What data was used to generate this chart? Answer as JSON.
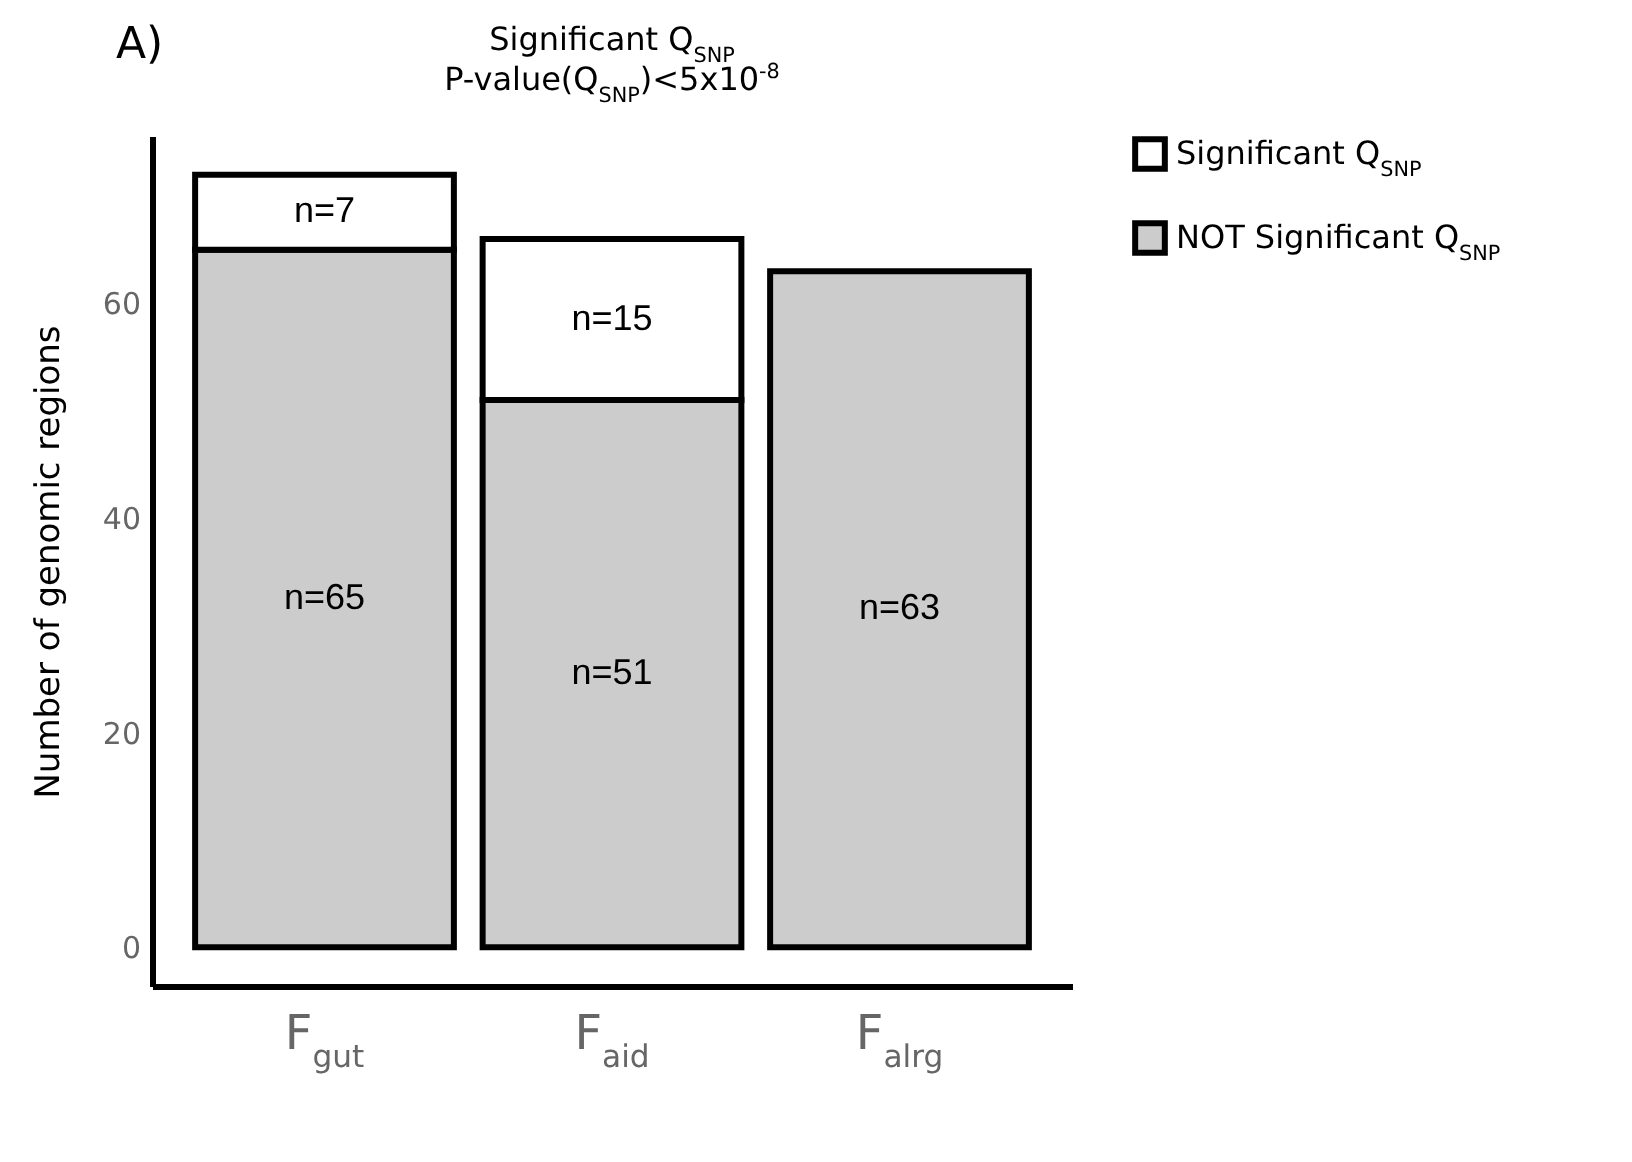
{
  "chart_data": {
    "type": "bar",
    "title": "Significant Q$_{SNP}$",
    "subtitle": "P-value(Q$_{SNP}$)<5x10$^{-8}$",
    "ylabel": "Number of genomic regions",
    "annotations": [
      "A)"
    ],
    "categories": [
      "F$_{gut}$",
      "F$_{aid}$",
      "F$_{alrg}$"
    ],
    "stacked": true,
    "series": [
      {
        "name": "NOT Significant Q$_{SNP}$",
        "color": "#cccccc",
        "values": [
          65,
          51,
          63
        ],
        "value_labels": [
          "n=65",
          "n=51",
          "n=63"
        ]
      },
      {
        "name": "Significant Q$_{SNP}$",
        "color": "#ffffff",
        "values": [
          7,
          15,
          null
        ],
        "value_labels": [
          "n=7",
          "n=15",
          null
        ]
      }
    ],
    "ylim": [
      -3.6,
      75.6
    ],
    "yticks": [
      0,
      20,
      40,
      60
    ],
    "grid": false,
    "legend": "right"
  }
}
